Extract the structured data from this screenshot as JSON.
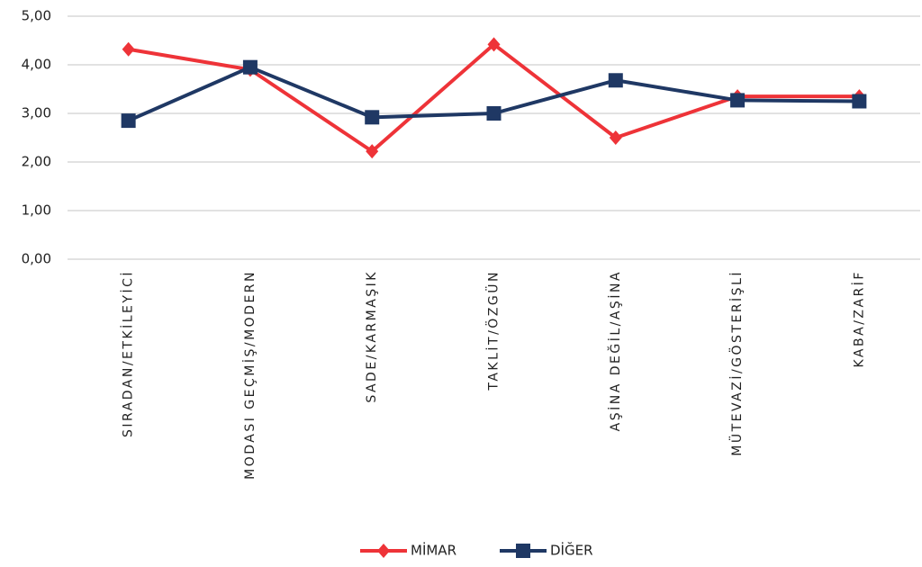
{
  "chart_data": {
    "type": "line",
    "categories": [
      "SIRADAN/ETKİLEYİCİ",
      "MODASI GEÇMİŞ/MODERN",
      "SADE/KARMAŞIK",
      "TAKLİT/ÖZGÜN",
      "AŞİNA DEĞİL/AŞİNA",
      "MÜTEVAZİ/GÖSTERİŞLİ",
      "KABA/ZARİF"
    ],
    "series": [
      {
        "name": "MİMAR",
        "color": "#ee3338",
        "marker": "diamond",
        "values": [
          4.32,
          3.9,
          2.22,
          4.42,
          2.5,
          3.35,
          3.35
        ]
      },
      {
        "name": "DİĞER",
        "color": "#1f3864",
        "marker": "square",
        "values": [
          2.85,
          3.95,
          2.92,
          3.0,
          3.68,
          3.27,
          3.25
        ]
      }
    ],
    "ylim": [
      0,
      5
    ],
    "yticks": [
      {
        "value": 0,
        "label": "0,00"
      },
      {
        "value": 1,
        "label": "1,00"
      },
      {
        "value": 2,
        "label": "2,00"
      },
      {
        "value": 3,
        "label": "3,00"
      },
      {
        "value": 4,
        "label": "4,00"
      },
      {
        "value": 5,
        "label": "5,00"
      }
    ],
    "grid": true,
    "legend": "bottom"
  }
}
